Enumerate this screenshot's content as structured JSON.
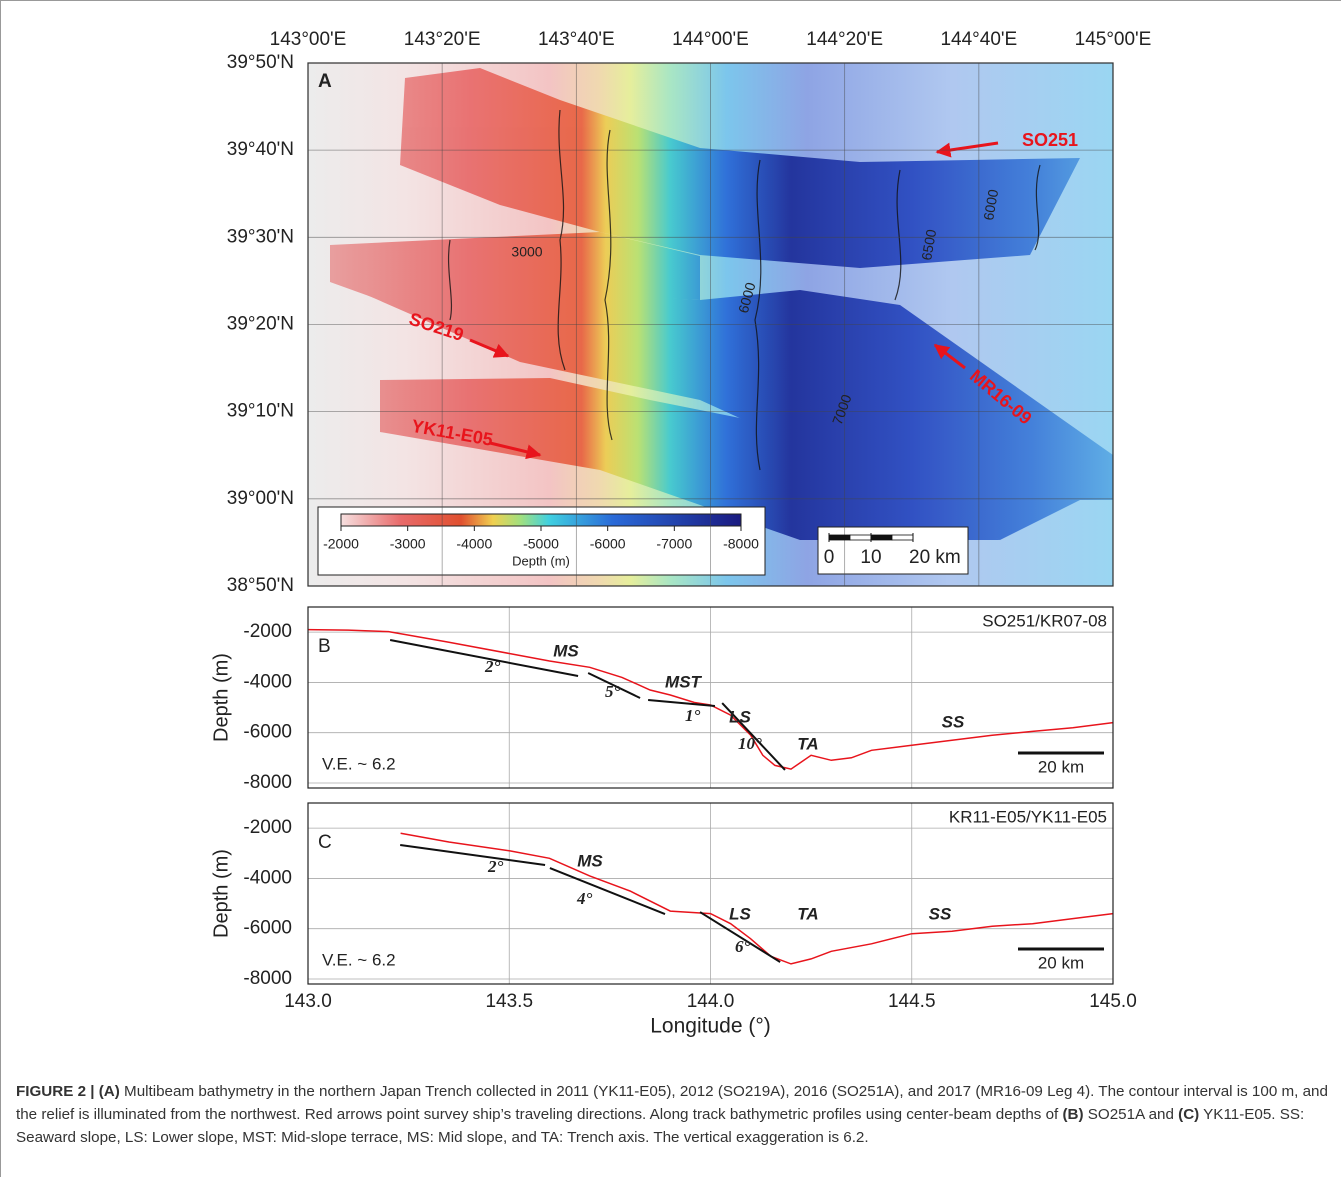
{
  "figure": {
    "map": {
      "panel": "A",
      "xlim": [
        143,
        145
      ],
      "ylim": [
        38.8333,
        39.8333
      ],
      "xticks": [
        {
          "value": 143,
          "label": "143°00'E"
        },
        {
          "value": 143.3333,
          "label": "143°20'E"
        },
        {
          "value": 143.6667,
          "label": "143°40'E"
        },
        {
          "value": 144,
          "label": "144°00'E"
        },
        {
          "value": 144.3333,
          "label": "144°20'E"
        },
        {
          "value": 144.6667,
          "label": "144°40'E"
        },
        {
          "value": 145,
          "label": "145°00'E"
        }
      ],
      "yticks": [
        {
          "value": 38.8333,
          "label": "38°50'N"
        },
        {
          "value": 39,
          "label": "39°00'N"
        },
        {
          "value": 39.1667,
          "label": "39°10'N"
        },
        {
          "value": 39.3333,
          "label": "39°20'N"
        },
        {
          "value": 39.5,
          "label": "39°30'N"
        },
        {
          "value": 39.6667,
          "label": "39°40'N"
        },
        {
          "value": 39.8333,
          "label": "39°50'N"
        }
      ],
      "ships": [
        "SO251",
        "SO219",
        "MR16-09",
        "YK11-E05"
      ],
      "contours": [
        3000,
        6000,
        6500,
        6000,
        7000
      ],
      "colorbar": {
        "range": [
          -2000,
          -8000
        ],
        "ticks": [
          -2000,
          -3000,
          -4000,
          -5000,
          -6000,
          -7000,
          -8000
        ],
        "label": "Depth (m)"
      },
      "scale_bar": {
        "range": [
          0,
          20
        ],
        "ticks": [
          0,
          10,
          {
            "value": 20,
            "label": "20 km"
          }
        ]
      }
    },
    "profiles": {
      "xlim": [
        143,
        145
      ],
      "xticks": [
        {
          "value": 143,
          "label": "143.0"
        },
        {
          "value": 143.5,
          "label": "143.5"
        },
        {
          "value": 144,
          "label": "144.0"
        },
        {
          "value": 144.5,
          "label": "144.5"
        },
        {
          "value": 145,
          "label": "145.0"
        }
      ],
      "ylim": [
        -8200,
        -1000
      ],
      "yticks": [
        -2000,
        -4000,
        -6000,
        -8000
      ],
      "xlabel": "Longitude (°)",
      "ylabel": "Depth (m)",
      "panels": [
        {
          "panel": "B",
          "track": "SO251/KR07-08",
          "ve": "V.E. ~ 6.2",
          "scale": "20 km",
          "x": [
            143.0,
            143.1,
            143.2,
            143.35,
            143.5,
            143.6,
            143.7,
            143.78,
            143.85,
            143.9,
            143.96,
            144.0,
            144.05,
            144.1,
            144.13,
            144.16,
            144.2,
            144.25,
            144.3,
            144.35,
            144.4,
            144.5,
            144.6,
            144.7,
            144.8,
            144.9,
            145.0
          ],
          "depth": [
            -1900,
            -1920,
            -1980,
            -2400,
            -2850,
            -3150,
            -3400,
            -3800,
            -4300,
            -4500,
            -4800,
            -4900,
            -5300,
            -6100,
            -6900,
            -7300,
            -7450,
            -6900,
            -7100,
            -7000,
            -6700,
            -6500,
            -6300,
            -6100,
            -5950,
            -5800,
            -5600
          ],
          "slopes": [
            {
              "label": "2°",
              "x": [
                143.204,
                143.671
              ],
              "y": [
                -2313,
                -3745
              ]
            },
            {
              "label": "5°",
              "x": [
                143.696,
                143.825
              ],
              "y": [
                -3625,
                -4620
              ]
            },
            {
              "label": "1°",
              "x": [
                143.845,
                144.011
              ],
              "y": [
                -4700,
                -4940
              ]
            },
            {
              "label": "10°",
              "x": [
                144.029,
                144.185
              ],
              "y": [
                -4820,
                -7480
              ]
            }
          ],
          "features": [
            "MS",
            "MST",
            "LS",
            "TA",
            "SS"
          ]
        },
        {
          "panel": "C",
          "track": "KR11-E05/YK11-E05",
          "ve": "V.E. ~ 6.2",
          "scale": "20 km",
          "x": [
            143.23,
            143.35,
            143.5,
            143.6,
            143.7,
            143.8,
            143.9,
            144.0,
            144.05,
            144.1,
            144.15,
            144.2,
            144.25,
            144.3,
            144.4,
            144.5,
            144.6,
            144.7,
            144.8,
            144.9,
            145.0
          ],
          "depth": [
            -2200,
            -2550,
            -2900,
            -3200,
            -3900,
            -4500,
            -5300,
            -5400,
            -5800,
            -6400,
            -7100,
            -7400,
            -7200,
            -6900,
            -6600,
            -6200,
            -6100,
            -5900,
            -5800,
            -5600,
            -5400
          ],
          "slopes": [
            {
              "label": "2°",
              "x": [
                143.229,
                143.589
              ],
              "y": [
                -2671,
                -3467
              ]
            },
            {
              "label": "4°",
              "x": [
                143.601,
                143.887
              ],
              "y": [
                -3587,
                -5417
              ]
            },
            {
              "label": "6°",
              "x": [
                143.974,
                144.173
              ],
              "y": [
                -5338,
                -7327
              ]
            }
          ],
          "features": [
            "MS",
            "LS",
            "TA",
            "SS"
          ]
        }
      ]
    }
  },
  "caption": [
    {
      "text": "FIGURE 2 | (A)",
      "bold": true
    },
    {
      "text": " Multibeam bathymetry in the northern Japan Trench collected in 2011 (YK11-E05), 2012 (SO219A), 2016 (SO251A), and 2017 (MR16-09 Leg 4). The contour interval is 100 m, and the relief is illuminated from the northwest. Red arrows point survey ship’s traveling directions. Along track bathymetric profiles using center-beam depths of ",
      "bold": false
    },
    {
      "text": "(B)",
      "bold": true
    },
    {
      "text": " SO251A and ",
      "bold": false
    },
    {
      "text": "(C)",
      "bold": true
    },
    {
      "text": " YK11-E05. SS: Seaward slope, LS: Lower slope, MST: Mid-slope terrace, MS: Mid slope, and TA: Trench axis. The vertical exaggeration is 6.2.",
      "bold": false
    }
  ]
}
